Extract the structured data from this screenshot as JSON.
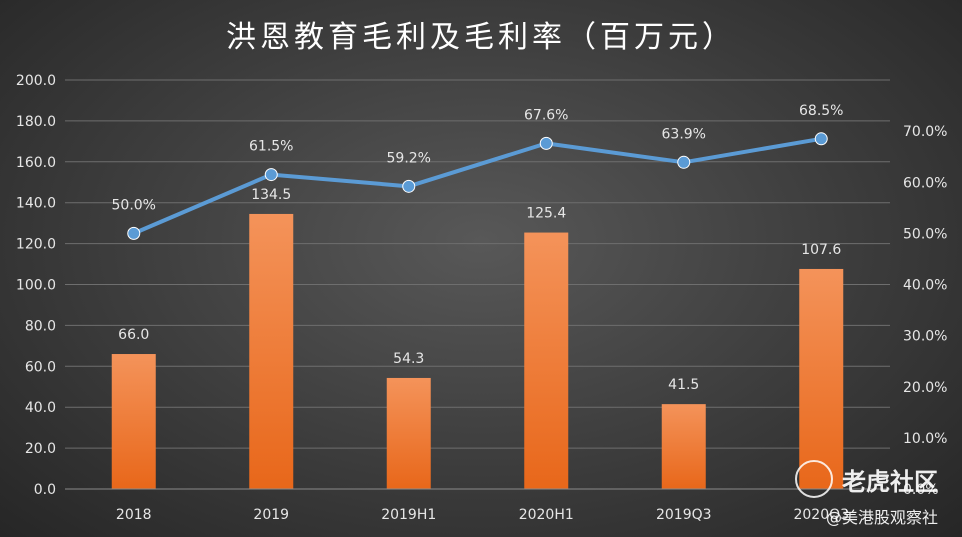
{
  "watermark": {
    "line1": "老虎社区",
    "line2": "@美港股观察社"
  },
  "chart_data": {
    "type": "bar",
    "title": "洪恩教育毛利及毛利率（百万元）",
    "categories": [
      "2018",
      "2019",
      "2019H1",
      "2020H1",
      "2019Q3",
      "2020Q3"
    ],
    "series": [
      {
        "type": "bar",
        "values": [
          66.0,
          134.5,
          54.3,
          125.4,
          41.5,
          107.6
        ],
        "labels": [
          "66.0",
          "134.5",
          "54.3",
          "125.4",
          "41.5",
          "107.6"
        ],
        "color": "#f07f2e",
        "axis": "left"
      },
      {
        "type": "line",
        "values": [
          50.0,
          61.5,
          59.2,
          67.6,
          63.9,
          68.5
        ],
        "labels": [
          "50.0%",
          "61.5%",
          "59.2%",
          "67.6%",
          "63.9%",
          "68.5%"
        ],
        "color": "#5b9bd5",
        "axis": "right"
      }
    ],
    "y_left": {
      "ylim": [
        0,
        200
      ],
      "ticks": [
        "0.0",
        "20.0",
        "40.0",
        "60.0",
        "80.0",
        "100.0",
        "120.0",
        "140.0",
        "160.0",
        "180.0",
        "200.0"
      ]
    },
    "y_right": {
      "ylim": [
        0,
        80
      ],
      "ticks": [
        "0.0%",
        "10.0%",
        "20.0%",
        "30.0%",
        "40.0%",
        "50.0%",
        "60.0%",
        "70.0%"
      ]
    },
    "grid": true,
    "legend": "none"
  }
}
